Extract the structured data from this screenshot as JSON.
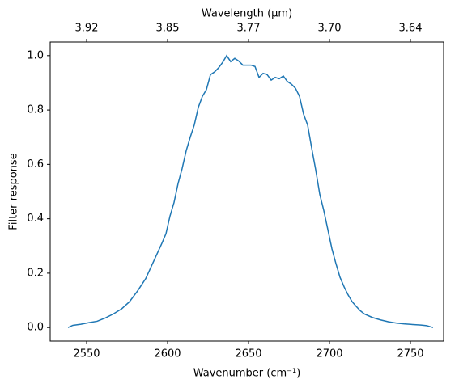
{
  "chart_data": {
    "type": "line",
    "xlabel": "Wavenumber (cm⁻¹)",
    "ylabel": "Filter response",
    "x2label": "Wavelength (μm)",
    "x": [
      2538.5,
      2541.5,
      2546.5,
      2551.5,
      2556.5,
      2561.5,
      2566.5,
      2571.5,
      2576.5,
      2581.5,
      2586.5,
      2591.5,
      2596.5,
      2599,
      2601.5,
      2604,
      2606.5,
      2609,
      2611.5,
      2614,
      2616.5,
      2619,
      2621.5,
      2624,
      2626.5,
      2629,
      2631.5,
      2634,
      2636.5,
      2639,
      2641.5,
      2644,
      2646.5,
      2649,
      2651.5,
      2654,
      2656.5,
      2659,
      2661.5,
      2664,
      2666.5,
      2669,
      2671.5,
      2674,
      2676.5,
      2679,
      2681.5,
      2684,
      2686.5,
      2689,
      2691.5,
      2694,
      2696.5,
      2699,
      2701.5,
      2704,
      2706.5,
      2709,
      2711.5,
      2714,
      2716.5,
      2719,
      2721.5,
      2726.5,
      2731.5,
      2736.5,
      2741.5,
      2746.5,
      2751.5,
      2756.5,
      2760,
      2764
    ],
    "series": [
      {
        "name": "Filter response",
        "color": "#1f77b4",
        "values": [
          0.0,
          0.008,
          0.012,
          0.018,
          0.023,
          0.035,
          0.05,
          0.068,
          0.095,
          0.135,
          0.18,
          0.245,
          0.31,
          0.345,
          0.41,
          0.46,
          0.53,
          0.585,
          0.65,
          0.7,
          0.745,
          0.81,
          0.85,
          0.875,
          0.93,
          0.94,
          0.955,
          0.975,
          1.0,
          0.978,
          0.99,
          0.98,
          0.965,
          0.965,
          0.965,
          0.96,
          0.92,
          0.935,
          0.93,
          0.91,
          0.92,
          0.915,
          0.925,
          0.905,
          0.895,
          0.88,
          0.85,
          0.785,
          0.745,
          0.66,
          0.58,
          0.49,
          0.43,
          0.36,
          0.29,
          0.235,
          0.185,
          0.15,
          0.12,
          0.095,
          0.078,
          0.062,
          0.05,
          0.037,
          0.028,
          0.021,
          0.016,
          0.013,
          0.011,
          0.009,
          0.007,
          0.0
        ]
      }
    ],
    "xlim": [
      2527.5,
      2770.5
    ],
    "xticks": [
      2550,
      2600,
      2650,
      2700,
      2750
    ],
    "x2ticks": [
      {
        "value": 2550,
        "label": "3.92"
      },
      {
        "value": 2600,
        "label": "3.85"
      },
      {
        "value": 2650,
        "label": "3.77"
      },
      {
        "value": 2700,
        "label": "3.70"
      },
      {
        "value": 2750,
        "label": "3.64"
      }
    ],
    "ylim": [
      -0.05,
      1.05
    ],
    "yticks": [
      {
        "value": 0,
        "label": "0.0"
      },
      {
        "value": 0.2,
        "label": "0.2"
      },
      {
        "value": 0.4,
        "label": "0.4"
      },
      {
        "value": 0.6,
        "label": "0.6"
      },
      {
        "value": 0.8,
        "label": "0.8"
      },
      {
        "value": 1.0,
        "label": "1.0"
      }
    ],
    "grid": false
  }
}
